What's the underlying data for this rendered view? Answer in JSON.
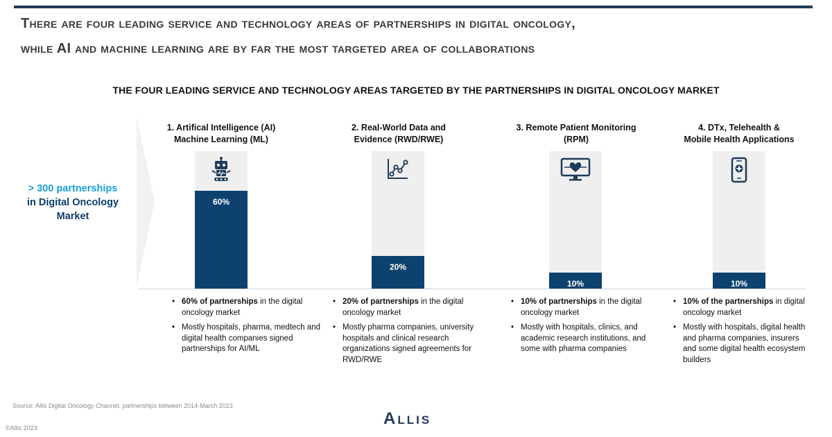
{
  "headline": {
    "line1": "There are four leading service and technology areas of partnerships in digital oncology,",
    "line2": "while AI and machine learning are by far the most targeted area of collaborations"
  },
  "summary": {
    "accent": "> 300 partnerships",
    "rest_line1": "in Digital Oncology",
    "rest_line2": "Market"
  },
  "chart_data": {
    "type": "bar",
    "title": "THE FOUR LEADING SERVICE AND TECHNOLOGY AREAS TARGETED BY THE PARTNERSHIPS IN DIGITAL ONCOLOGY MARKET",
    "categories": [
      "1. Artifical Intelligence (AI) Machine Learning (ML)",
      "2. Real-World Data and Evidence (RWD/RWE)",
      "3. Remote Patient Monitoring (RPM)",
      "4. DTx, Telehealth & Mobile Health Applications"
    ],
    "values": [
      60,
      20,
      10,
      10
    ],
    "data_labels": [
      "60%",
      "20%",
      "10%",
      "10%"
    ],
    "unit": "%",
    "ylim": [
      0,
      100
    ],
    "grid": false,
    "legend": "none",
    "bar_color": "#0d426f",
    "track_color": "#efefef"
  },
  "columns": [
    {
      "head_line1": "1. Artifical Intelligence (AI)",
      "head_line2": "Machine Learning (ML)",
      "icon": "robot-icon",
      "note1_bold": "60% of partnerships",
      "note1_rest": " in the digital oncology market",
      "note2": "Mostly hospitals, pharma, medtech and digital health companies signed partnerships for AI/ML"
    },
    {
      "head_line1": "2. Real-World Data and",
      "head_line2": "Evidence (RWD/RWE)",
      "icon": "line-chart-icon",
      "note1_bold": "20% of partnerships",
      "note1_rest": " in the digital oncology market",
      "note2": "Mostly pharma companies, university hospitals and clinical research organizations signed agreements for RWD/RWE"
    },
    {
      "head_line1": "3. Remote Patient Monitoring",
      "head_line2": "(RPM)",
      "icon": "heart-monitor-icon",
      "note1_bold": "10% of partnerships",
      "note1_rest": " in the digital oncology market",
      "note2": "Mostly with hospitals, clinics, and academic research institutions, and some with pharma companies"
    },
    {
      "head_line1": "4. DTx, Telehealth &",
      "head_line2": "Mobile Health Applications",
      "icon": "mobile-health-icon",
      "note1_bold": "10% of the partnerships",
      "note1_rest": " in digital oncology market",
      "note2": "Mostly with hospitals, digital health and pharma companies, insurers and some digital health ecosystem builders"
    }
  ],
  "footer": {
    "source": "Source: Allis Digital Oncology Channel, partnerships between 2014-March 2023",
    "copyright": "©Allis 2023",
    "logo": "Allis"
  }
}
